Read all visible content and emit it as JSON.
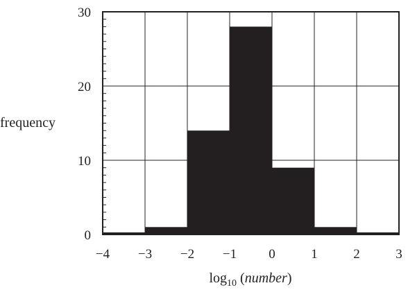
{
  "chart_data": {
    "type": "bar",
    "title": "",
    "xlabel": "log10 (number)",
    "xlabel_parts": {
      "pre": "log",
      "sub": "10",
      "open": " (",
      "italic": "number",
      "close": ")"
    },
    "ylabel": "frequency",
    "xlim": [
      -4,
      3
    ],
    "ylim": [
      0,
      30
    ],
    "x_ticks": [
      -4,
      -3,
      -2,
      -1,
      0,
      1,
      2,
      3
    ],
    "x_tick_labels": [
      "−4",
      "−3",
      "−2",
      "−1",
      "0",
      "1",
      "2",
      "3"
    ],
    "y_ticks": [
      0,
      10,
      20,
      30
    ],
    "y_tick_labels": [
      "0",
      "10",
      "20",
      "30"
    ],
    "y_minor_step": 1,
    "grid": true,
    "bins": [
      {
        "x0": -4,
        "x1": -3,
        "value": 0
      },
      {
        "x0": -3,
        "x1": -2,
        "value": 1
      },
      {
        "x0": -2,
        "x1": -1,
        "value": 14
      },
      {
        "x0": -1,
        "x1": 0,
        "value": 28
      },
      {
        "x0": 0,
        "x1": 1,
        "value": 9
      },
      {
        "x0": 1,
        "x1": 2,
        "value": 1
      },
      {
        "x0": 2,
        "x1": 3,
        "value": 0
      }
    ],
    "bar_color": "#231f20",
    "grid_color": "#231f20"
  }
}
